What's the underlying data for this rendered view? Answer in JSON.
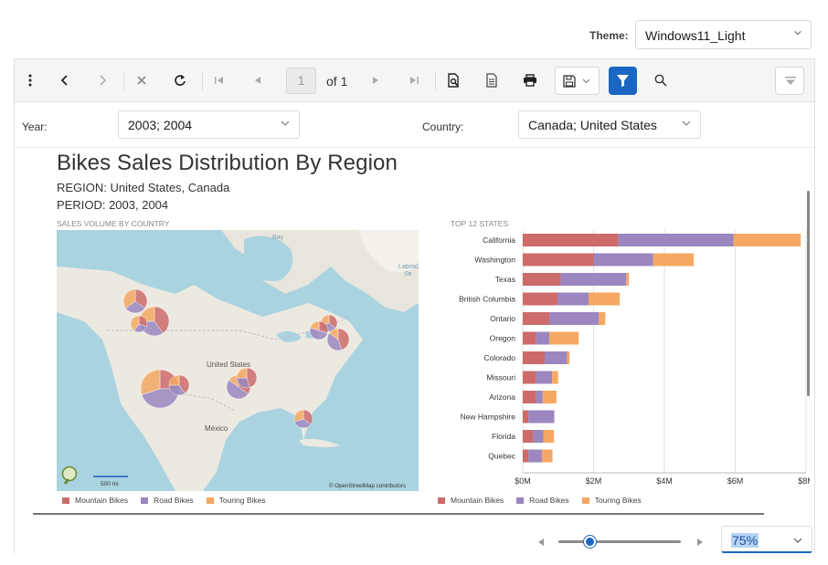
{
  "theme": {
    "label": "Theme:",
    "value": "Windows11_Light"
  },
  "toolbar": {
    "page_current": "1",
    "page_of": "of 1"
  },
  "params": {
    "year_label": "Year:",
    "year_value": "2003; 2004",
    "country_label": "Country:",
    "country_value": "Canada; United States"
  },
  "report": {
    "title": "Bikes Sales Distribution By Region",
    "region": "REGION: United States, Canada",
    "period": "PERIOD: 2003, 2004",
    "map_caption": "SALES VOLUME BY COUNTRY",
    "chart_caption": "TOP 12 STATES",
    "map_labels": {
      "bay": "Bay",
      "labrador": "Labrad\nSe",
      "united_states": "United States",
      "mexico": "México",
      "scale": "500 mi",
      "attribution": "© OpenStreetMap contributors"
    }
  },
  "colors": {
    "mountain": "#cd6b6b",
    "road": "#9b86bf",
    "touring": "#f5a862",
    "accent": "#1a66c2"
  },
  "chart_data": {
    "type": "bar",
    "orientation": "horizontal",
    "stacked": true,
    "categories": [
      "California",
      "Washington",
      "Texas",
      "British Columbia",
      "Ontario",
      "Oregon",
      "Colorado",
      "Missouri",
      "Arizona",
      "New Hampshire",
      "Florida",
      "Quebec"
    ],
    "series": [
      {
        "name": "Mountain Bikes",
        "values": [
          2.7,
          2.0,
          1.07,
          0.98,
          0.75,
          0.38,
          0.62,
          0.38,
          0.38,
          0.16,
          0.3,
          0.16
        ]
      },
      {
        "name": "Road Bikes",
        "values": [
          3.25,
          1.68,
          1.85,
          0.88,
          1.4,
          0.37,
          0.63,
          0.45,
          0.18,
          0.73,
          0.28,
          0.38
        ]
      },
      {
        "name": "Touring Bikes",
        "values": [
          1.9,
          1.15,
          0.08,
          0.88,
          0.18,
          0.83,
          0.07,
          0.17,
          0.39,
          0.0,
          0.3,
          0.3
        ]
      }
    ],
    "xticks": [
      "$0M",
      "$2M",
      "$4M",
      "$6M",
      "$8M"
    ],
    "xlim": [
      0,
      8
    ],
    "grid": true,
    "legend": "bottom"
  },
  "legend_items": [
    "Mountain Bikes",
    "Road Bikes",
    "Touring Bikes"
  ],
  "zoom": {
    "value": "75%"
  }
}
